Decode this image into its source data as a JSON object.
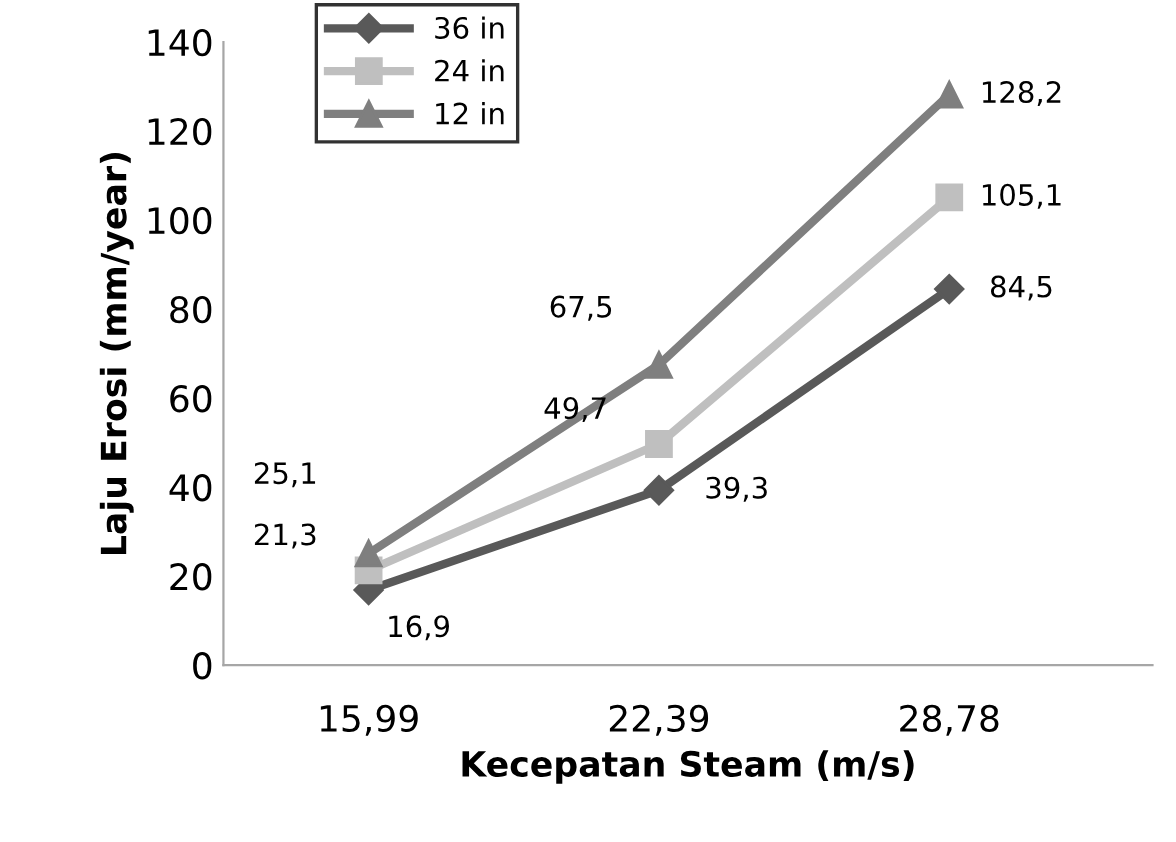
{
  "chart_data": {
    "type": "line",
    "xlabel": "Kecepatan Steam (m/s)",
    "ylabel": "Laju Erosi (mm/year)",
    "categories": [
      "15,99",
      "22,39",
      "28,78"
    ],
    "ylim": [
      0,
      140
    ],
    "yticks": [
      0,
      20,
      40,
      60,
      80,
      100,
      120,
      140
    ],
    "grid": false,
    "legend": "top left",
    "series": [
      {
        "name": "36 in",
        "color": "#595959",
        "marker": "diamond",
        "values": [
          16.9,
          39.3,
          84.5
        ],
        "value_labels": [
          "16,9",
          "39,3",
          "84,5"
        ]
      },
      {
        "name": "24 in",
        "color": "#bfbfbf",
        "marker": "square",
        "values": [
          21.3,
          49.7,
          105.1
        ],
        "value_labels": [
          "21,3",
          "49,7",
          "105,1"
        ]
      },
      {
        "name": "12 in",
        "color": "#7f7f7f",
        "marker": "triangle",
        "values": [
          25.1,
          67.5,
          128.2
        ],
        "value_labels": [
          "25,1",
          "67,5",
          "128,2"
        ]
      }
    ]
  }
}
